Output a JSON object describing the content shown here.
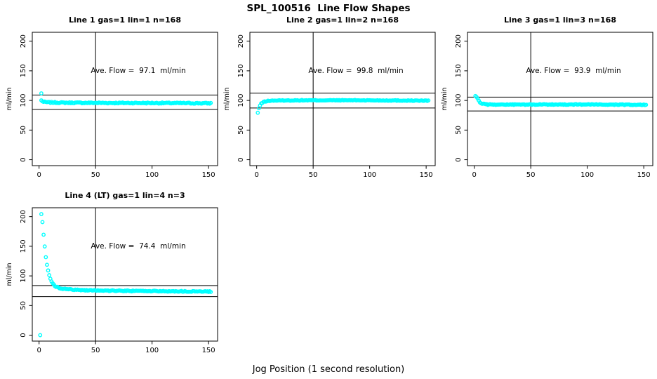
{
  "header": {
    "title": "SPL_100516  Line Flow Shapes"
  },
  "footer": {
    "xlabel": "Jog Position (1 second resolution)"
  },
  "colors": {
    "point": "#00FFFF",
    "axis": "#000000",
    "text": "#000000",
    "background": "#FFFFFF"
  },
  "axes": {
    "x_ticks": [
      0,
      50,
      100,
      150
    ],
    "y_ticks": [
      0,
      50,
      100,
      150,
      200
    ],
    "xlim": [
      -6,
      158
    ],
    "ylim": [
      -10,
      215
    ],
    "y_axis_label": "ml/min",
    "vline_x": 50,
    "grid": false,
    "point_style": "open-circle"
  },
  "chart_data": [
    {
      "type": "scatter",
      "title": "Line 1 gas=1 lin=1 n=168",
      "annotation": "Ave. Flow =  97.1  ml/min",
      "ave_flow_ml_min": 97.1,
      "n": 168,
      "hlines": [
        109.2,
        85.0
      ],
      "x_start": 2,
      "x_end": 152,
      "keyframes": [
        [
          2,
          100
        ],
        [
          4,
          97.5
        ],
        [
          8,
          96.8
        ],
        [
          20,
          96.2
        ],
        [
          60,
          95.8
        ],
        [
          110,
          95.6
        ],
        [
          152,
          95.2
        ]
      ],
      "outliers": [
        [
          2,
          112
        ]
      ],
      "noise": 0.9,
      "seed": 7
    },
    {
      "type": "scatter",
      "title": "Line 2 gas=1 lin=2 n=168",
      "annotation": "Ave. Flow =  99.8  ml/min",
      "ave_flow_ml_min": 99.8,
      "n": 168,
      "hlines": [
        112.3,
        87.3
      ],
      "x_start": 1,
      "x_end": 152,
      "keyframes": [
        [
          1,
          79
        ],
        [
          2,
          87
        ],
        [
          3,
          91.5
        ],
        [
          4,
          94.5
        ],
        [
          6,
          97.5
        ],
        [
          9,
          99
        ],
        [
          15,
          99.8
        ],
        [
          40,
          100.2
        ],
        [
          90,
          100.3
        ],
        [
          152,
          99.6
        ]
      ],
      "outliers": [],
      "noise": 0.6,
      "seed": 13
    },
    {
      "type": "scatter",
      "title": "Line 3 gas=1 lin=3 n=168",
      "annotation": "Ave. Flow =  93.9  ml/min",
      "ave_flow_ml_min": 93.9,
      "n": 168,
      "hlines": [
        105.6,
        82.2
      ],
      "x_start": 1,
      "x_end": 152,
      "keyframes": [
        [
          1,
          107
        ],
        [
          2,
          105.5
        ],
        [
          3,
          103
        ],
        [
          4,
          99.5
        ],
        [
          5,
          97
        ],
        [
          6,
          95.5
        ],
        [
          8,
          94
        ],
        [
          12,
          93.2
        ],
        [
          40,
          93
        ],
        [
          90,
          93.3
        ],
        [
          152,
          92.6
        ]
      ],
      "outliers": [],
      "noise": 0.7,
      "seed": 29
    },
    {
      "type": "scatter",
      "title": "Line 4 (LT) gas=1 lin=4 n=3",
      "annotation": "Ave. Flow =  74.4  ml/min",
      "ave_flow_ml_min": 74.4,
      "n": 3,
      "hlines": [
        83.7,
        65.1
      ],
      "x_start": 2,
      "x_end": 152,
      "keyframes": [
        [
          2,
          205
        ],
        [
          3,
          190
        ],
        [
          4,
          170
        ],
        [
          5,
          149
        ],
        [
          6,
          132
        ],
        [
          7,
          119
        ],
        [
          8,
          109
        ],
        [
          9,
          101.5
        ],
        [
          10,
          95.5
        ],
        [
          11,
          90.5
        ],
        [
          12,
          87
        ],
        [
          14,
          83
        ],
        [
          16,
          80.8
        ],
        [
          20,
          78.8
        ],
        [
          26,
          77.3
        ],
        [
          35,
          76.3
        ],
        [
          50,
          75.5
        ],
        [
          80,
          74.7
        ],
        [
          120,
          74
        ],
        [
          152,
          73.4
        ]
      ],
      "outliers": [
        [
          1,
          0
        ]
      ],
      "noise": 0.8,
      "seed": 41
    }
  ]
}
